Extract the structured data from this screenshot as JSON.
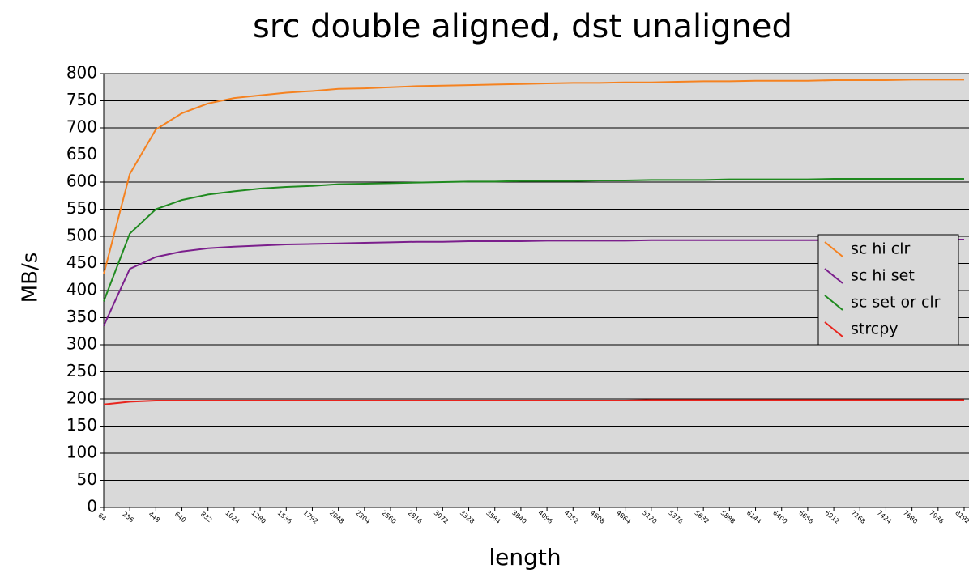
{
  "chart_data": {
    "type": "line",
    "title": "src double aligned, dst unaligned",
    "xlabel": "length",
    "ylabel": "MB/s",
    "categories": [
      "64",
      "256",
      "448",
      "640",
      "832",
      "1024",
      "1280",
      "1536",
      "1792",
      "2048",
      "2304",
      "2560",
      "2816",
      "3072",
      "3328",
      "3584",
      "3840",
      "4096",
      "4352",
      "4608",
      "4864",
      "5120",
      "5376",
      "5632",
      "5888",
      "6144",
      "6400",
      "6656",
      "6912",
      "7168",
      "7424",
      "7680",
      "7936",
      "8192"
    ],
    "series": [
      {
        "name": "sc hi clr",
        "color": "#f58220",
        "values": [
          430,
          615,
          697,
          727,
          745,
          755,
          760,
          765,
          768,
          772,
          773,
          775,
          777,
          778,
          779,
          780,
          781,
          782,
          783,
          783,
          784,
          784,
          785,
          786,
          786,
          787,
          787,
          787,
          788,
          788,
          788,
          789,
          789,
          789
        ]
      },
      {
        "name": "sc hi set",
        "color": "#7b1f8c",
        "values": [
          335,
          440,
          462,
          472,
          478,
          481,
          483,
          485,
          486,
          487,
          488,
          489,
          490,
          490,
          491,
          491,
          491,
          492,
          492,
          492,
          492,
          493,
          493,
          493,
          493,
          493,
          493,
          493,
          493,
          493,
          494,
          494,
          494,
          494
        ]
      },
      {
        "name": "sc set or clr",
        "color": "#1f8a1f",
        "values": [
          380,
          505,
          550,
          567,
          577,
          583,
          588,
          591,
          593,
          596,
          597,
          598,
          599,
          600,
          601,
          601,
          602,
          602,
          602,
          603,
          603,
          604,
          604,
          604,
          605,
          605,
          605,
          605,
          606,
          606,
          606,
          606,
          606,
          606
        ]
      },
      {
        "name": "strcpy",
        "color": "#e8251e",
        "values": [
          190,
          195,
          197,
          197,
          197,
          197,
          197,
          197,
          197,
          197,
          197,
          197,
          197,
          197,
          197,
          197,
          197,
          197,
          197,
          197,
          197,
          198,
          198,
          198,
          198,
          198,
          198,
          198,
          198,
          198,
          198,
          198,
          198,
          198
        ]
      }
    ],
    "ylim": [
      0,
      800
    ],
    "yticks": [
      0,
      50,
      100,
      150,
      200,
      250,
      300,
      350,
      400,
      450,
      500,
      550,
      600,
      650,
      700,
      750,
      800
    ],
    "grid": true,
    "legend": "right",
    "background": "#d9d9d9"
  }
}
